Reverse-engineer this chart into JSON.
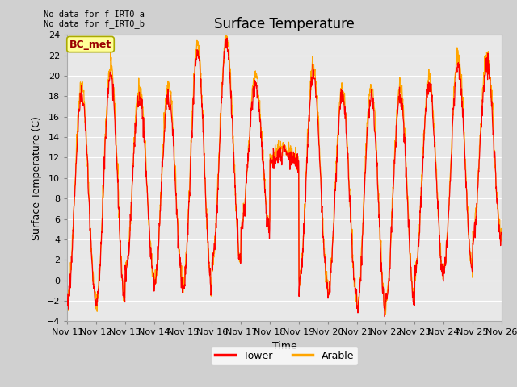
{
  "title": "Surface Temperature",
  "ylabel": "Surface Temperature (C)",
  "xlabel": "Time",
  "ylim": [
    -4,
    24
  ],
  "yticks": [
    -4,
    -2,
    0,
    2,
    4,
    6,
    8,
    10,
    12,
    14,
    16,
    18,
    20,
    22,
    24
  ],
  "xtick_labels": [
    "Nov 11",
    "Nov 12",
    "Nov 13",
    "Nov 14",
    "Nov 15",
    "Nov 16",
    "Nov 17",
    "Nov 18",
    "Nov 19",
    "Nov 20",
    "Nov 21",
    "Nov 22",
    "Nov 23",
    "Nov 24",
    "Nov 25",
    "Nov 26"
  ],
  "legend_labels": [
    "Tower",
    "Arable"
  ],
  "legend_colors": [
    "#ff0000",
    "#ffa500"
  ],
  "annotation_text": "No data for f_IRT0_a\nNo data for f_IRT0_b",
  "bc_met_label": "BC_met",
  "bc_met_facecolor": "#ffff99",
  "bc_met_edgecolor": "#aaaa00",
  "bc_met_text_color": "#990000",
  "tower_color": "#ff0000",
  "arable_color": "#ffa500",
  "fig_facecolor": "#d0d0d0",
  "plot_facecolor": "#e8e8e8",
  "grid_color": "#ffffff",
  "title_fontsize": 12,
  "label_fontsize": 9,
  "tick_fontsize": 8,
  "n_days": 15,
  "points_per_day": 96
}
